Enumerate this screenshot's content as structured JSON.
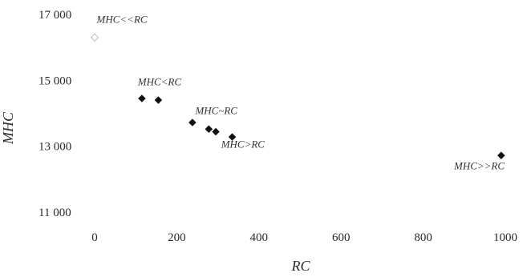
{
  "chart_data": {
    "type": "scatter",
    "title": "",
    "xlabel": "RC",
    "ylabel": "MHC",
    "xlim": [
      0,
      1000
    ],
    "ylim": [
      11000,
      17000
    ],
    "x_ticks": [
      0,
      200,
      400,
      600,
      800,
      1000
    ],
    "x_tick_labels": [
      "0",
      "200",
      "400",
      "600",
      "800",
      "1000"
    ],
    "y_ticks": [
      11000,
      13000,
      15000,
      17000
    ],
    "y_tick_labels": [
      "11 000",
      "13 000",
      "15 000",
      "17 000"
    ],
    "grid": false,
    "legend": "none",
    "marker": "diamond",
    "marker_color": "#111111",
    "points": [
      {
        "x": 0,
        "y": 16300,
        "faint": true
      },
      {
        "x": 115,
        "y": 14450
      },
      {
        "x": 155,
        "y": 14400
      },
      {
        "x": 238,
        "y": 13720
      },
      {
        "x": 278,
        "y": 13520
      },
      {
        "x": 295,
        "y": 13440
      },
      {
        "x": 335,
        "y": 13280
      },
      {
        "x": 990,
        "y": 12720
      }
    ],
    "annotations": [
      {
        "text": "MHC<<RC",
        "x": 5,
        "y": 16750
      },
      {
        "text": "MHC<RC",
        "x": 105,
        "y": 14850
      },
      {
        "text": "MHC~RC",
        "x": 245,
        "y": 13980
      },
      {
        "text": "MHC>RC",
        "x": 308,
        "y": 12950
      },
      {
        "text": "MHC>>RC",
        "x": 875,
        "y": 12300
      }
    ]
  }
}
